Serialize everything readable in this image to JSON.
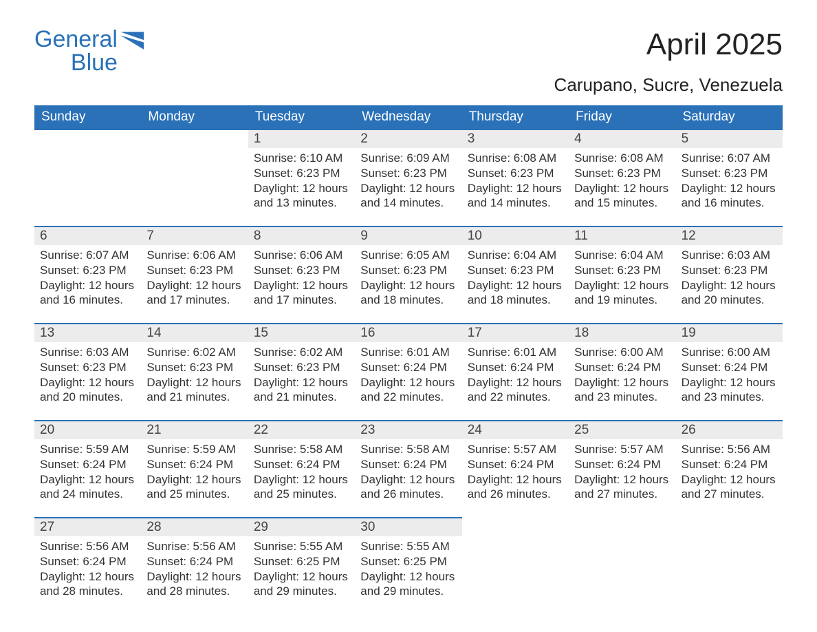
{
  "logo": {
    "top": "General",
    "bottom": "Blue",
    "brand_color": "#2a71b8"
  },
  "title": "April 2025",
  "location": "Carupano, Sucre, Venezuela",
  "days_of_week": [
    "Sunday",
    "Monday",
    "Tuesday",
    "Wednesday",
    "Thursday",
    "Friday",
    "Saturday"
  ],
  "colors": {
    "header_bg": "#2a71b8",
    "header_text": "#ffffff",
    "daynum_bg": "#ececec",
    "row_border": "#2a71b8",
    "text": "#333333",
    "background": "#ffffff"
  },
  "typography": {
    "title_fontsize": 44,
    "location_fontsize": 26,
    "dow_fontsize": 19,
    "daynum_fontsize": 19,
    "info_fontsize": 17,
    "font_family": "Arial"
  },
  "layout": {
    "leading_blank_cells": 2,
    "columns": 7,
    "rows": 5
  },
  "labels": {
    "sunrise": "Sunrise:",
    "sunset": "Sunset:",
    "daylight": "Daylight:"
  },
  "cells": [
    {
      "day": 1,
      "sunrise": "6:10 AM",
      "sunset": "6:23 PM",
      "daylight": "12 hours and 13 minutes."
    },
    {
      "day": 2,
      "sunrise": "6:09 AM",
      "sunset": "6:23 PM",
      "daylight": "12 hours and 14 minutes."
    },
    {
      "day": 3,
      "sunrise": "6:08 AM",
      "sunset": "6:23 PM",
      "daylight": "12 hours and 14 minutes."
    },
    {
      "day": 4,
      "sunrise": "6:08 AM",
      "sunset": "6:23 PM",
      "daylight": "12 hours and 15 minutes."
    },
    {
      "day": 5,
      "sunrise": "6:07 AM",
      "sunset": "6:23 PM",
      "daylight": "12 hours and 16 minutes."
    },
    {
      "day": 6,
      "sunrise": "6:07 AM",
      "sunset": "6:23 PM",
      "daylight": "12 hours and 16 minutes."
    },
    {
      "day": 7,
      "sunrise": "6:06 AM",
      "sunset": "6:23 PM",
      "daylight": "12 hours and 17 minutes."
    },
    {
      "day": 8,
      "sunrise": "6:06 AM",
      "sunset": "6:23 PM",
      "daylight": "12 hours and 17 minutes."
    },
    {
      "day": 9,
      "sunrise": "6:05 AM",
      "sunset": "6:23 PM",
      "daylight": "12 hours and 18 minutes."
    },
    {
      "day": 10,
      "sunrise": "6:04 AM",
      "sunset": "6:23 PM",
      "daylight": "12 hours and 18 minutes."
    },
    {
      "day": 11,
      "sunrise": "6:04 AM",
      "sunset": "6:23 PM",
      "daylight": "12 hours and 19 minutes."
    },
    {
      "day": 12,
      "sunrise": "6:03 AM",
      "sunset": "6:23 PM",
      "daylight": "12 hours and 20 minutes."
    },
    {
      "day": 13,
      "sunrise": "6:03 AM",
      "sunset": "6:23 PM",
      "daylight": "12 hours and 20 minutes."
    },
    {
      "day": 14,
      "sunrise": "6:02 AM",
      "sunset": "6:23 PM",
      "daylight": "12 hours and 21 minutes."
    },
    {
      "day": 15,
      "sunrise": "6:02 AM",
      "sunset": "6:23 PM",
      "daylight": "12 hours and 21 minutes."
    },
    {
      "day": 16,
      "sunrise": "6:01 AM",
      "sunset": "6:24 PM",
      "daylight": "12 hours and 22 minutes."
    },
    {
      "day": 17,
      "sunrise": "6:01 AM",
      "sunset": "6:24 PM",
      "daylight": "12 hours and 22 minutes."
    },
    {
      "day": 18,
      "sunrise": "6:00 AM",
      "sunset": "6:24 PM",
      "daylight": "12 hours and 23 minutes."
    },
    {
      "day": 19,
      "sunrise": "6:00 AM",
      "sunset": "6:24 PM",
      "daylight": "12 hours and 23 minutes."
    },
    {
      "day": 20,
      "sunrise": "5:59 AM",
      "sunset": "6:24 PM",
      "daylight": "12 hours and 24 minutes."
    },
    {
      "day": 21,
      "sunrise": "5:59 AM",
      "sunset": "6:24 PM",
      "daylight": "12 hours and 25 minutes."
    },
    {
      "day": 22,
      "sunrise": "5:58 AM",
      "sunset": "6:24 PM",
      "daylight": "12 hours and 25 minutes."
    },
    {
      "day": 23,
      "sunrise": "5:58 AM",
      "sunset": "6:24 PM",
      "daylight": "12 hours and 26 minutes."
    },
    {
      "day": 24,
      "sunrise": "5:57 AM",
      "sunset": "6:24 PM",
      "daylight": "12 hours and 26 minutes."
    },
    {
      "day": 25,
      "sunrise": "5:57 AM",
      "sunset": "6:24 PM",
      "daylight": "12 hours and 27 minutes."
    },
    {
      "day": 26,
      "sunrise": "5:56 AM",
      "sunset": "6:24 PM",
      "daylight": "12 hours and 27 minutes."
    },
    {
      "day": 27,
      "sunrise": "5:56 AM",
      "sunset": "6:24 PM",
      "daylight": "12 hours and 28 minutes."
    },
    {
      "day": 28,
      "sunrise": "5:56 AM",
      "sunset": "6:24 PM",
      "daylight": "12 hours and 28 minutes."
    },
    {
      "day": 29,
      "sunrise": "5:55 AM",
      "sunset": "6:25 PM",
      "daylight": "12 hours and 29 minutes."
    },
    {
      "day": 30,
      "sunrise": "5:55 AM",
      "sunset": "6:25 PM",
      "daylight": "12 hours and 29 minutes."
    }
  ]
}
